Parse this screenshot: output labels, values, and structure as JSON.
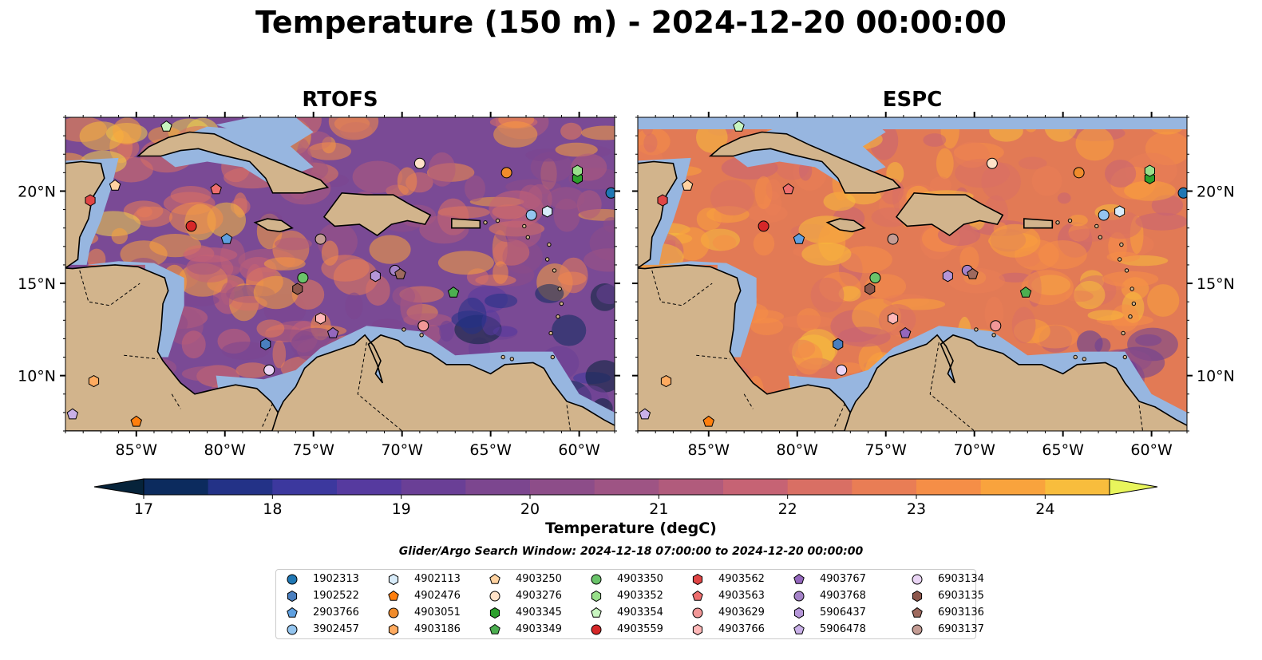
{
  "title": "Temperature (150 m) - 2024-12-20 00:00:00",
  "panels": [
    {
      "title": "RTOFS",
      "ocean": "#7a4a95"
    },
    {
      "title": "ESPC",
      "ocean": "#e27a55"
    }
  ],
  "map_extent": {
    "lon_min": -89,
    "lon_max": -58,
    "lat_min": 7,
    "lat_max": 24
  },
  "lon_ticks": [
    {
      "lon": -85,
      "label": "85°W"
    },
    {
      "lon": -80,
      "label": "80°W"
    },
    {
      "lon": -75,
      "label": "75°W"
    },
    {
      "lon": -70,
      "label": "70°W"
    },
    {
      "lon": -65,
      "label": "65°W"
    },
    {
      "lon": -60,
      "label": "60°W"
    }
  ],
  "lat_ticks": [
    {
      "lat": 20,
      "label": "20°N"
    },
    {
      "lat": 15,
      "label": "15°N"
    },
    {
      "lat": 10,
      "label": "10°N"
    }
  ],
  "colors": {
    "land": "#d2b48c",
    "shelf": "#97b6e0",
    "coast": "#000000",
    "deep": "#0a2438"
  },
  "colorbar": {
    "min": 16.5,
    "max": 24.5,
    "ticks": [
      "17",
      "18",
      "19",
      "20",
      "21",
      "22",
      "23",
      "24"
    ],
    "tick_values": [
      17,
      18,
      19,
      20,
      21,
      22,
      23,
      24
    ],
    "label": "Temperature (degC)",
    "colors": [
      "#06233a",
      "#0c2b5e",
      "#233287",
      "#3c389e",
      "#563a9f",
      "#6a3f96",
      "#7c468f",
      "#8d4d89",
      "#9e5484",
      "#b15b7c",
      "#c66374",
      "#d96f64",
      "#e97d55",
      "#f58e47",
      "#f9a33d",
      "#f8bd3d",
      "#f2d44a"
    ],
    "under_color": "#06233a",
    "over_color": "#e8f55c"
  },
  "search_window": "Glider/Argo Search Window: 2024-12-18 07:00:00 to 2024-12-20 00:00:00",
  "floats": [
    {
      "id": "1902313",
      "color": "#1f77b4",
      "marker": "circle",
      "lon": -58.2,
      "lat": 19.9
    },
    {
      "id": "1902522",
      "color": "#4a7fbf",
      "marker": "hexagon",
      "lon": -77.7,
      "lat": 11.7
    },
    {
      "id": "2903766",
      "color": "#5fa0e0",
      "marker": "pentagon",
      "lon": -79.9,
      "lat": 17.4
    },
    {
      "id": "3902457",
      "color": "#94c5ef",
      "marker": "circle",
      "lon": -62.7,
      "lat": 18.7
    },
    {
      "id": "4902113",
      "color": "#d8ecfa",
      "marker": "hexagon",
      "lon": -61.8,
      "lat": 18.9
    },
    {
      "id": "4902476",
      "color": "#ff7f0e",
      "marker": "pentagon",
      "lon": -85.0,
      "lat": 7.5
    },
    {
      "id": "4903051",
      "color": "#f08c2c",
      "marker": "circle",
      "lon": -64.1,
      "lat": 21.0
    },
    {
      "id": "4903186",
      "color": "#ffab60",
      "marker": "hexagon",
      "lon": -87.4,
      "lat": 9.7
    },
    {
      "id": "4903250",
      "color": "#ffd2a0",
      "marker": "pentagon",
      "lon": -86.2,
      "lat": 20.3
    },
    {
      "id": "4903276",
      "color": "#ffe2c8",
      "marker": "circle",
      "lon": -69.0,
      "lat": 21.5
    },
    {
      "id": "4903345",
      "color": "#2ca02c",
      "marker": "hexagon",
      "lon": -60.1,
      "lat": 20.7
    },
    {
      "id": "4903349",
      "color": "#4caf50",
      "marker": "pentagon",
      "lon": -67.1,
      "lat": 14.5
    },
    {
      "id": "4903350",
      "color": "#6ac46a",
      "marker": "circle",
      "lon": -75.6,
      "lat": 15.3
    },
    {
      "id": "4903352",
      "color": "#98df8a",
      "marker": "hexagon",
      "lon": -60.1,
      "lat": 21.1
    },
    {
      "id": "4903354",
      "color": "#c8f5c0",
      "marker": "pentagon",
      "lon": -83.3,
      "lat": 23.5
    },
    {
      "id": "4903559",
      "color": "#d62728",
      "marker": "circle",
      "lon": -81.9,
      "lat": 18.1
    },
    {
      "id": "4903562",
      "color": "#e04545",
      "marker": "hexagon",
      "lon": -87.6,
      "lat": 19.5
    },
    {
      "id": "4903563",
      "color": "#ee6e6e",
      "marker": "pentagon",
      "lon": -80.5,
      "lat": 20.1
    },
    {
      "id": "4903629",
      "color": "#f19797",
      "marker": "circle",
      "lon": -68.8,
      "lat": 12.7
    },
    {
      "id": "4903766",
      "color": "#ffb8b8",
      "marker": "hexagon",
      "lon": -74.6,
      "lat": 13.1
    },
    {
      "id": "4903767",
      "color": "#9467bd",
      "marker": "pentagon",
      "lon": -73.9,
      "lat": 12.3
    },
    {
      "id": "4903768",
      "color": "#a583c8",
      "marker": "circle",
      "lon": -70.4,
      "lat": 15.7
    },
    {
      "id": "5906437",
      "color": "#b596d8",
      "marker": "hexagon",
      "lon": -71.5,
      "lat": 15.4
    },
    {
      "id": "5906478",
      "color": "#c9b0e8",
      "marker": "pentagon",
      "lon": -88.6,
      "lat": 7.9
    },
    {
      "id": "6903134",
      "color": "#ead5f5",
      "marker": "circle",
      "lon": -77.5,
      "lat": 10.3
    },
    {
      "id": "6903135",
      "color": "#8c564b",
      "marker": "hexagon",
      "lon": -75.9,
      "lat": 14.7
    },
    {
      "id": "6903136",
      "color": "#9e6a5e",
      "marker": "pentagon",
      "lon": -70.1,
      "lat": 15.5
    },
    {
      "id": "6903137",
      "color": "#c49c94",
      "marker": "circle",
      "lon": -74.6,
      "lat": 17.4
    }
  ]
}
